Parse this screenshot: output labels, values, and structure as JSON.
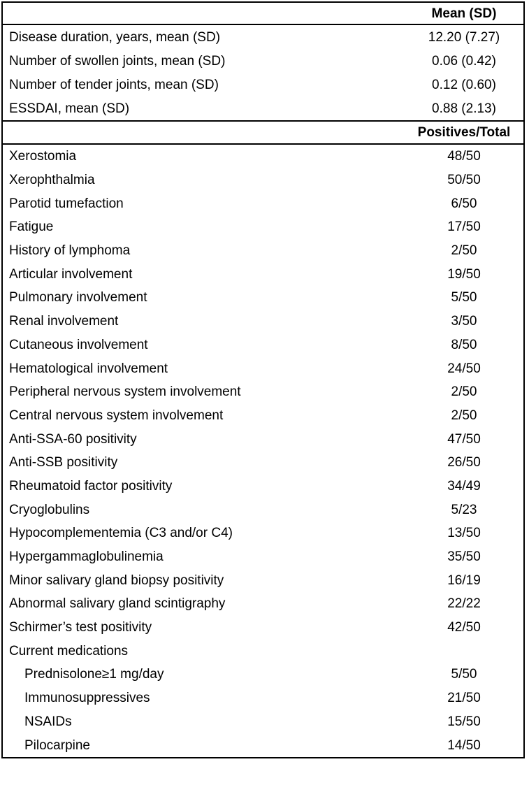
{
  "page": {
    "background_color": "#ffffff",
    "text_color": "#000000",
    "border_color": "#000000"
  },
  "table": {
    "mean_section": {
      "header_label": "Mean (SD)",
      "rows": [
        {
          "label": "Disease duration, years, mean (SD)",
          "value": "12.20 (7.27)"
        },
        {
          "label": "Number of swollen joints, mean (SD)",
          "value": "0.06 (0.42)"
        },
        {
          "label": "Number of tender joints, mean (SD)",
          "value": "0.12 (0.60)"
        },
        {
          "label": "ESSDAI, mean (SD)",
          "value": "0.88 (2.13)"
        }
      ]
    },
    "positives_section": {
      "header_label": "Positives/Total",
      "rows": [
        {
          "label": "Xerostomia",
          "value": "48/50"
        },
        {
          "label": "Xerophthalmia",
          "value": "50/50"
        },
        {
          "label": "Parotid tumefaction",
          "value": "6/50"
        },
        {
          "label": "Fatigue",
          "value": "17/50"
        },
        {
          "label": "History of lymphoma",
          "value": "2/50"
        },
        {
          "label": "Articular involvement",
          "value": "19/50"
        },
        {
          "label": "Pulmonary involvement",
          "value": "5/50"
        },
        {
          "label": "Renal involvement",
          "value": "3/50"
        },
        {
          "label": "Cutaneous involvement",
          "value": "8/50"
        },
        {
          "label": "Hematological involvement",
          "value": "24/50"
        },
        {
          "label": "Peripheral nervous system involvement",
          "value": "2/50"
        },
        {
          "label": "Central nervous system involvement",
          "value": "2/50"
        },
        {
          "label": "Anti-SSA-60 positivity",
          "value": "47/50"
        },
        {
          "label": "Anti-SSB positivity",
          "value": "26/50"
        },
        {
          "label": "Rheumatoid factor positivity",
          "value": "34/49"
        },
        {
          "label": "Cryoglobulins",
          "value": "5/23"
        },
        {
          "label": "Hypocomplementemia (C3 and/or C4)",
          "value": "13/50"
        },
        {
          "label": "Hypergammaglobulinemia",
          "value": "35/50"
        },
        {
          "label": "Minor salivary gland biopsy positivity",
          "value": "16/19"
        },
        {
          "label": "Abnormal salivary gland scintigraphy",
          "value": "22/22"
        },
        {
          "label": "Schirmer’s test positivity",
          "value": "42/50"
        },
        {
          "label": "Current medications",
          "value": ""
        },
        {
          "label": "Prednisolone≥1 mg/day",
          "value": "5/50",
          "indent": true
        },
        {
          "label": "Immunosuppressives",
          "value": "21/50",
          "indent": true
        },
        {
          "label": "NSAIDs",
          "value": "15/50",
          "indent": true
        },
        {
          "label": "Pilocarpine",
          "value": "14/50",
          "indent": true
        }
      ]
    }
  }
}
